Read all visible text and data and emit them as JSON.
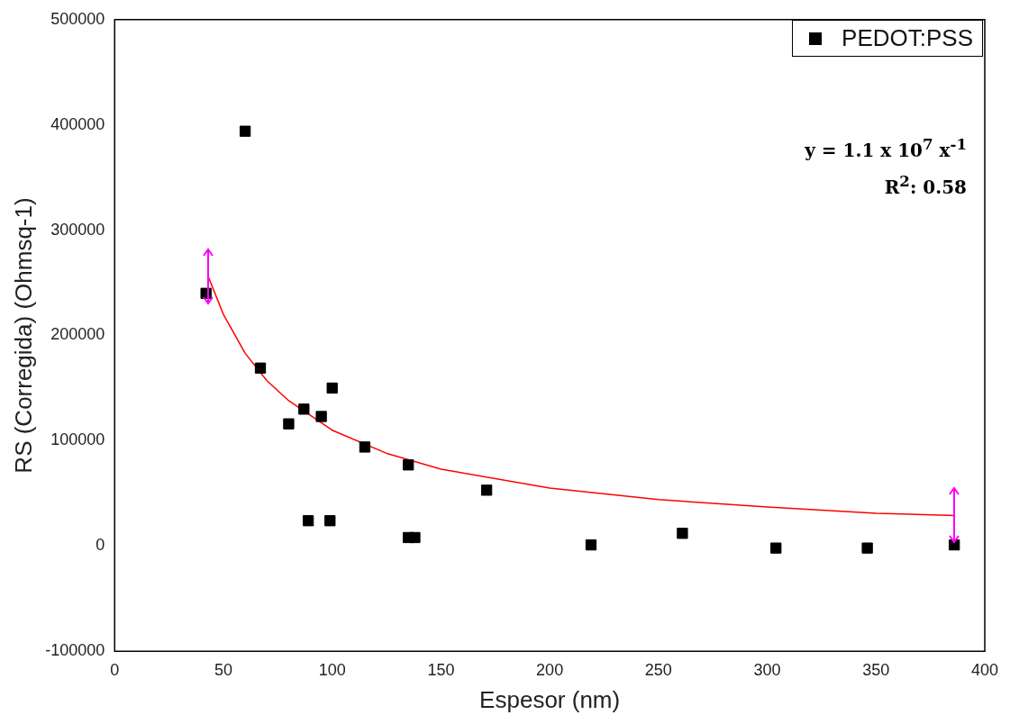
{
  "chart_data": {
    "type": "scatter",
    "xlabel": "Espesor (nm)",
    "ylabel": "RS (Corregida) (Ohmsq-1)",
    "xlim": [
      0,
      400
    ],
    "xticks": [
      0,
      50,
      100,
      150,
      200,
      250,
      300,
      350,
      400
    ],
    "ylim": [
      -100000,
      500000
    ],
    "yticks": [
      -100000,
      0,
      100000,
      200000,
      300000,
      400000,
      500000
    ],
    "grid": false,
    "legend": "top right",
    "marker": "square",
    "series": [
      {
        "name": "PEDOT:PSS",
        "color": "#000000",
        "type": "scatter",
        "x": [
          42,
          60,
          67,
          80,
          87,
          89,
          95,
          99,
          100,
          115,
          135,
          135,
          138,
          171,
          219,
          261,
          304,
          346,
          386
        ],
        "values": [
          240000,
          394000,
          169000,
          116000,
          130000,
          24000,
          123000,
          24000,
          150000,
          94000,
          77000,
          8000,
          8000,
          53000,
          1000,
          12000,
          -2000,
          -2000,
          1000
        ]
      },
      {
        "color": "#ff0000",
        "type": "line",
        "marker": "none",
        "line_style": "solid",
        "x": [
          43,
          50,
          60,
          70,
          80,
          100,
          125,
          150,
          200,
          250,
          300,
          350,
          386
        ],
        "values": [
          256000,
          220000,
          183000,
          157000,
          138000,
          110000,
          88000,
          73000,
          55000,
          44000,
          37000,
          31000,
          29000
        ]
      }
    ],
    "annotations": [
      "y = 1.1 x 10$^{7}$ x$^{-1}$",
      "R$^{2}$: 0.58"
    ]
  }
}
